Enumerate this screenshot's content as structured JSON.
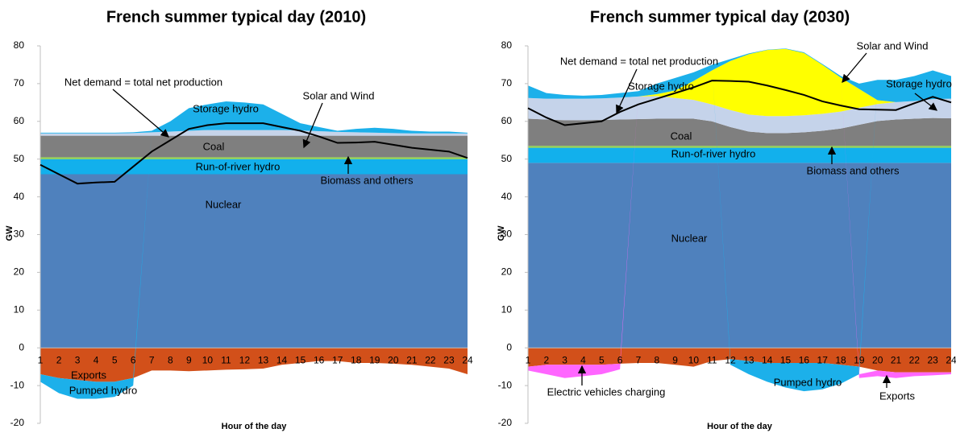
{
  "chart_data": [
    {
      "type": "area",
      "title": "French summer typical day (2010)",
      "x_label": "Hour of the day",
      "y_label": "GW",
      "categories": [
        1,
        2,
        3,
        4,
        5,
        6,
        7,
        8,
        9,
        10,
        11,
        12,
        13,
        14,
        15,
        16,
        17,
        18,
        19,
        20,
        21,
        22,
        23,
        24
      ],
      "ylim": [
        -20,
        80
      ],
      "yticks": [
        -20,
        -10,
        0,
        10,
        20,
        30,
        40,
        50,
        60,
        70,
        80
      ],
      "stacked": true,
      "series": [
        {
          "name": "Nuclear",
          "color": "#4f81bd",
          "values": [
            46,
            46,
            46,
            46,
            46,
            46,
            46,
            46,
            46,
            46,
            46,
            46,
            46,
            46,
            46,
            46,
            46,
            46,
            46,
            46,
            46,
            46,
            46,
            46
          ]
        },
        {
          "name": "Run-of-river hydro",
          "color": "#12b0ec",
          "values": [
            4,
            4,
            4,
            4,
            4,
            4,
            4,
            4,
            4,
            4,
            4,
            4,
            4,
            4,
            4,
            4,
            4,
            4,
            4,
            4,
            4,
            4,
            4,
            4
          ]
        },
        {
          "name": "Biomass and others",
          "color": "#92d050",
          "values": [
            0.5,
            0.5,
            0.5,
            0.5,
            0.5,
            0.5,
            0.5,
            0.5,
            0.5,
            0.5,
            0.5,
            0.5,
            0.5,
            0.5,
            0.5,
            0.5,
            0.5,
            0.5,
            0.5,
            0.5,
            0.5,
            0.5,
            0.5,
            0.5
          ]
        },
        {
          "name": "Coal",
          "color": "#7f7f7f",
          "values": [
            5.7,
            5.7,
            5.7,
            5.7,
            5.7,
            5.7,
            5.7,
            5.7,
            5.7,
            5.7,
            5.7,
            5.7,
            5.7,
            5.7,
            5.7,
            5.7,
            5.7,
            5.7,
            5.7,
            5.7,
            5.7,
            5.7,
            5.7,
            5.7
          ]
        },
        {
          "name": "Solar and Wind",
          "color": "#c6d4ea",
          "values": [
            0.6,
            0.6,
            0.6,
            0.6,
            0.6,
            0.7,
            0.9,
            1.1,
            1.3,
            1.5,
            1.5,
            1.5,
            1.5,
            1.5,
            1.4,
            1.2,
            1.0,
            0.9,
            0.8,
            0.7,
            0.6,
            0.6,
            0.6,
            0.6
          ]
        },
        {
          "name": "Storage hydro",
          "color": "#1cb0ea",
          "values": [
            0.2,
            0.2,
            0.2,
            0.2,
            0.2,
            0.2,
            0.4,
            2.7,
            6.0,
            6.8,
            7.6,
            7.3,
            6.8,
            4.3,
            1.9,
            1.1,
            0.3,
            0.9,
            1.3,
            1.1,
            0.7,
            0.5,
            0.5,
            0.2
          ]
        },
        {
          "name": "Exports",
          "color": "#d2501a",
          "values": [
            -7,
            -8,
            -8.5,
            -9,
            -9,
            -8,
            -6,
            -6,
            -6.2,
            -6,
            -5.8,
            -5.7,
            -5.5,
            -4.5,
            -4,
            -3.5,
            -3.5,
            -4,
            -4,
            -4.2,
            -4.5,
            -5,
            -5.5,
            -7
          ]
        },
        {
          "name": "Pumped hydro",
          "color": "#1cb0ea",
          "values": [
            -2,
            -4,
            -5,
            -4.5,
            -4,
            -2,
            0,
            0,
            0,
            0,
            0,
            0,
            0,
            0,
            0,
            0,
            0,
            0,
            0,
            0,
            0,
            0,
            0,
            0
          ]
        },
        {
          "name": "Net demand = total net production",
          "color": "#000000",
          "type": "line",
          "values": [
            48.5,
            46,
            43.5,
            43.8,
            44,
            48,
            52,
            55,
            58,
            59,
            59.5,
            59.5,
            59.5,
            58.5,
            57.5,
            56,
            54.3,
            54.4,
            54.6,
            53.8,
            53,
            52.5,
            52,
            50.3
          ]
        }
      ]
    },
    {
      "type": "area",
      "title": "French summer typical day (2030)",
      "x_label": "Hour of the day",
      "y_label": "GW",
      "categories": [
        1,
        2,
        3,
        4,
        5,
        6,
        7,
        8,
        9,
        10,
        11,
        12,
        13,
        14,
        15,
        16,
        17,
        18,
        19,
        20,
        21,
        22,
        23,
        24
      ],
      "ylim": [
        -20,
        80
      ],
      "yticks": [
        -20,
        -10,
        0,
        10,
        20,
        30,
        40,
        50,
        60,
        70,
        80
      ],
      "stacked": true,
      "series": [
        {
          "name": "Nuclear",
          "color": "#4f81bd",
          "values": [
            49,
            49,
            49,
            49,
            49,
            49,
            49,
            49,
            49,
            49,
            49,
            49,
            49,
            49,
            49,
            49,
            49,
            49,
            49,
            49,
            49,
            49,
            49,
            49
          ]
        },
        {
          "name": "Run-of-river hydro",
          "color": "#12b0ec",
          "values": [
            4,
            4,
            4,
            4,
            4,
            4,
            4,
            4,
            4,
            4,
            4,
            4,
            4,
            4,
            4,
            4,
            4,
            4,
            4,
            4,
            4,
            4,
            4,
            4
          ]
        },
        {
          "name": "Biomass and others",
          "color": "#92d050",
          "values": [
            0.5,
            0.5,
            0.5,
            0.5,
            0.5,
            0.5,
            0.5,
            0.5,
            0.5,
            0.5,
            0.5,
            0.5,
            0.5,
            0.5,
            0.5,
            0.5,
            0.5,
            0.5,
            0.5,
            0.5,
            0.5,
            0.5,
            0.5,
            0.5
          ]
        },
        {
          "name": "Coal",
          "color": "#7f7f7f",
          "values": [
            7.2,
            7,
            6.8,
            6.8,
            6.9,
            7,
            7.1,
            7.2,
            7.2,
            7.2,
            6.5,
            5,
            3.8,
            3.4,
            3.4,
            3.6,
            4,
            4.6,
            5.6,
            6.6,
            7,
            7.2,
            7.4,
            7.3
          ]
        },
        {
          "name": "Storage hydro",
          "color": "#c5d3ea",
          "values": [
            5.5,
            5.5,
            5.7,
            5.7,
            5.7,
            5.8,
            6,
            6,
            5.5,
            5,
            4.5,
            4.5,
            4.5,
            4.5,
            4.5,
            4.5,
            4.5,
            4.5,
            4.5,
            4.5,
            4.6,
            4.7,
            5,
            5.2
          ]
        },
        {
          "name": "Solar and Wind",
          "color": "#ffff00",
          "values": [
            0,
            0,
            0,
            0,
            0,
            0,
            0,
            0.5,
            2,
            5,
            9,
            13,
            16,
            17.5,
            17.8,
            16.5,
            13,
            9,
            5,
            1,
            0,
            0,
            0,
            0
          ]
        },
        {
          "name": "Storage hydro",
          "color": "#1cb0ea",
          "values": [
            3.3,
            1.5,
            1,
            0.8,
            0.9,
            1.2,
            1.4,
            2.8,
            3.3,
            2.3,
            1.5,
            0.5,
            0.2,
            0.1,
            0.1,
            0.2,
            0.2,
            0.4,
            1.4,
            5.4,
            5.9,
            6.6,
            7.6,
            6
          ]
        },
        {
          "name": "Exports",
          "color": "#d2501a",
          "values": [
            -5,
            -4.5,
            -4.5,
            -4.5,
            -4.5,
            -4.2,
            -4,
            -4,
            -4.5,
            -5,
            -3.5,
            -3,
            -3.5,
            -4,
            -4,
            -4,
            -4,
            -4.5,
            -5,
            -6,
            -6.5,
            -6.5,
            -6.5,
            -6.5
          ]
        },
        {
          "name": "Pumped hydro",
          "color": "#1cb0ea",
          "values": [
            0,
            0,
            0,
            0,
            0,
            0,
            0,
            0,
            0,
            0,
            0,
            -1.5,
            -3.5,
            -5,
            -6.5,
            -7.5,
            -7,
            -5,
            -2,
            0,
            0,
            0,
            0,
            0
          ]
        },
        {
          "name": "Electric vehicles charging",
          "color": "#ff66ff",
          "values": [
            -1,
            -2.5,
            -3.5,
            -3,
            -2.5,
            -1.5,
            0,
            0,
            0,
            0,
            0,
            0,
            0,
            0,
            0,
            0,
            0,
            0,
            -1,
            -1.5,
            -1.5,
            -1,
            -0.8,
            -0.5
          ]
        },
        {
          "name": "Net demand = total net production",
          "color": "#000000",
          "type": "line",
          "values": [
            63.5,
            61,
            59,
            59.5,
            60,
            62.5,
            64.5,
            66,
            67.5,
            69,
            70.8,
            70.7,
            70.5,
            69.5,
            68.3,
            67,
            65.3,
            64.2,
            63.2,
            63.1,
            63,
            64.8,
            66.5,
            65
          ]
        }
      ]
    }
  ]
}
